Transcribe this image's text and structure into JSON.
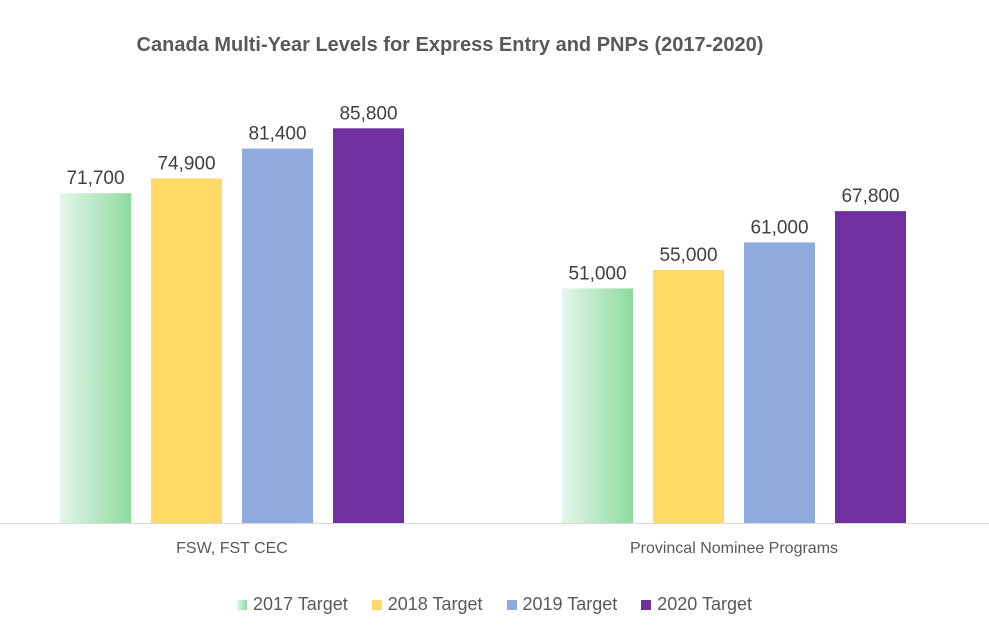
{
  "chart_data": {
    "type": "bar",
    "title": "Canada Multi-Year Levels for Express Entry and PNPs (2017-2020)",
    "categories": [
      "FSW, FST CEC",
      "Provincal Nominee Programs"
    ],
    "series": [
      {
        "name": "2017 Target",
        "values": [
          71700,
          51000
        ],
        "labels": [
          "71,700",
          "51,000"
        ],
        "color": "#8EDB9E"
      },
      {
        "name": "2018 Target",
        "values": [
          74900,
          55000
        ],
        "labels": [
          "74,900",
          "55,000"
        ],
        "color": "#FFD966"
      },
      {
        "name": "2019 Target",
        "values": [
          81400,
          61000
        ],
        "labels": [
          "81,400",
          "61,000"
        ],
        "color": "#8FAADC"
      },
      {
        "name": "2020 Target",
        "values": [
          85800,
          67800
        ],
        "labels": [
          "85,800",
          "67,800"
        ],
        "color": "#7030A0"
      }
    ],
    "ylim": [
      0,
      100000
    ],
    "legend": "bottom",
    "grid": false
  }
}
